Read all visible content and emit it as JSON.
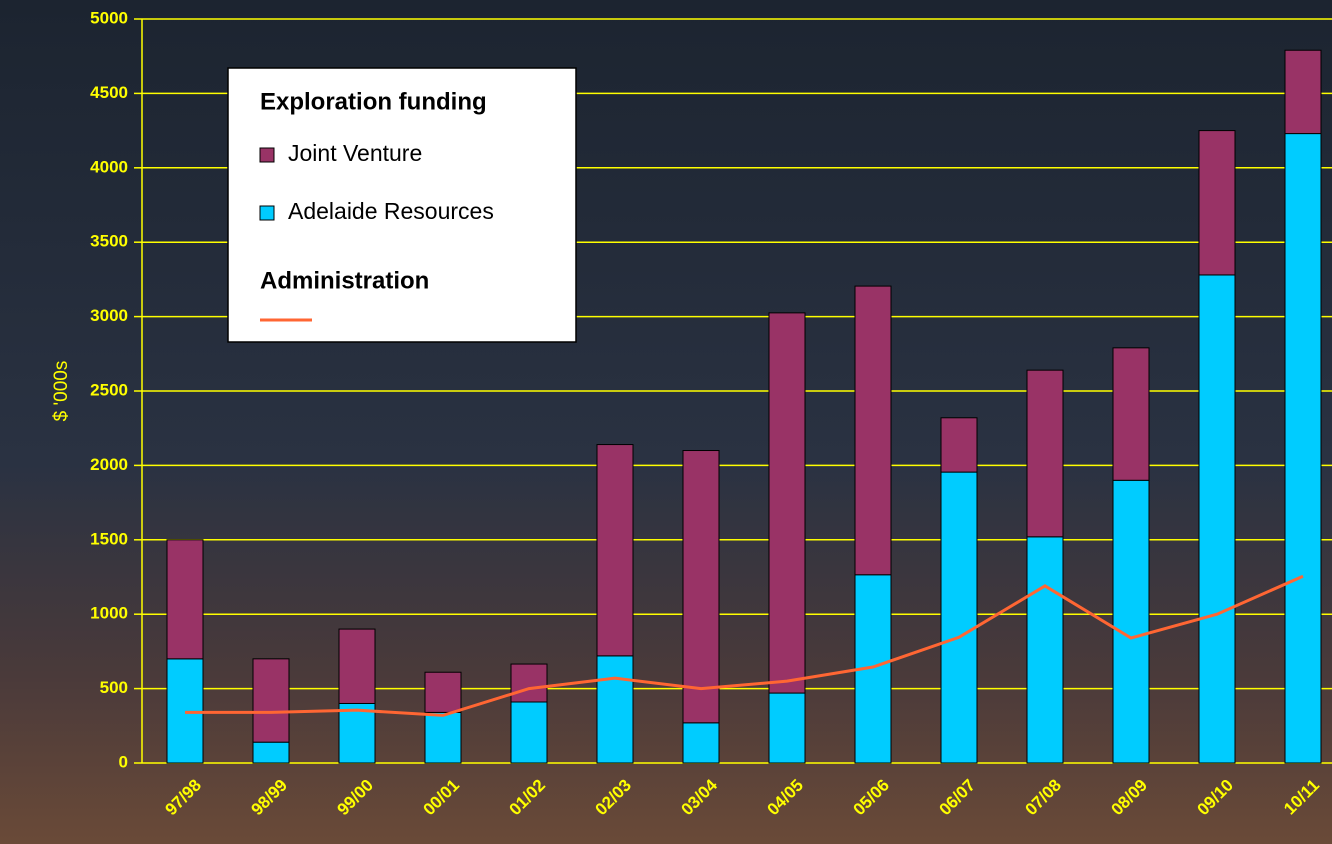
{
  "chart_data": {
    "type": "stacked-bar-line",
    "y_label": "$ '000s",
    "legend_title": "Exploration funding",
    "categories": [
      "97/98",
      "98/99",
      "99/00",
      "00/01",
      "01/02",
      "02/03",
      "03/04",
      "04/05",
      "05/06",
      "06/07",
      "07/08",
      "08/09",
      "09/10",
      "10/11"
    ],
    "series": [
      {
        "name": "Adelaide Resources",
        "color": "#00ccff",
        "kind": "bar",
        "values": [
          700,
          140,
          400,
          340,
          410,
          720,
          270,
          470,
          1265,
          1955,
          1520,
          1900,
          3280,
          4230
        ]
      },
      {
        "name": "Joint Venture",
        "color": "#993366",
        "kind": "bar",
        "values": [
          800,
          560,
          500,
          270,
          255,
          1420,
          1830,
          2555,
          1940,
          365,
          1120,
          890,
          970,
          560
        ]
      },
      {
        "name": "Administration",
        "color": "#ff6633",
        "kind": "line",
        "values": [
          340,
          340,
          355,
          320,
          500,
          570,
          500,
          550,
          645,
          845,
          1190,
          840,
          1000,
          1255
        ]
      }
    ],
    "ylim": [
      0,
      5000
    ],
    "yticks": [
      0,
      500,
      1000,
      1500,
      2000,
      2500,
      3000,
      3500,
      4000,
      4500,
      5000
    ],
    "grid": true,
    "grid_color": "#ffff00"
  }
}
